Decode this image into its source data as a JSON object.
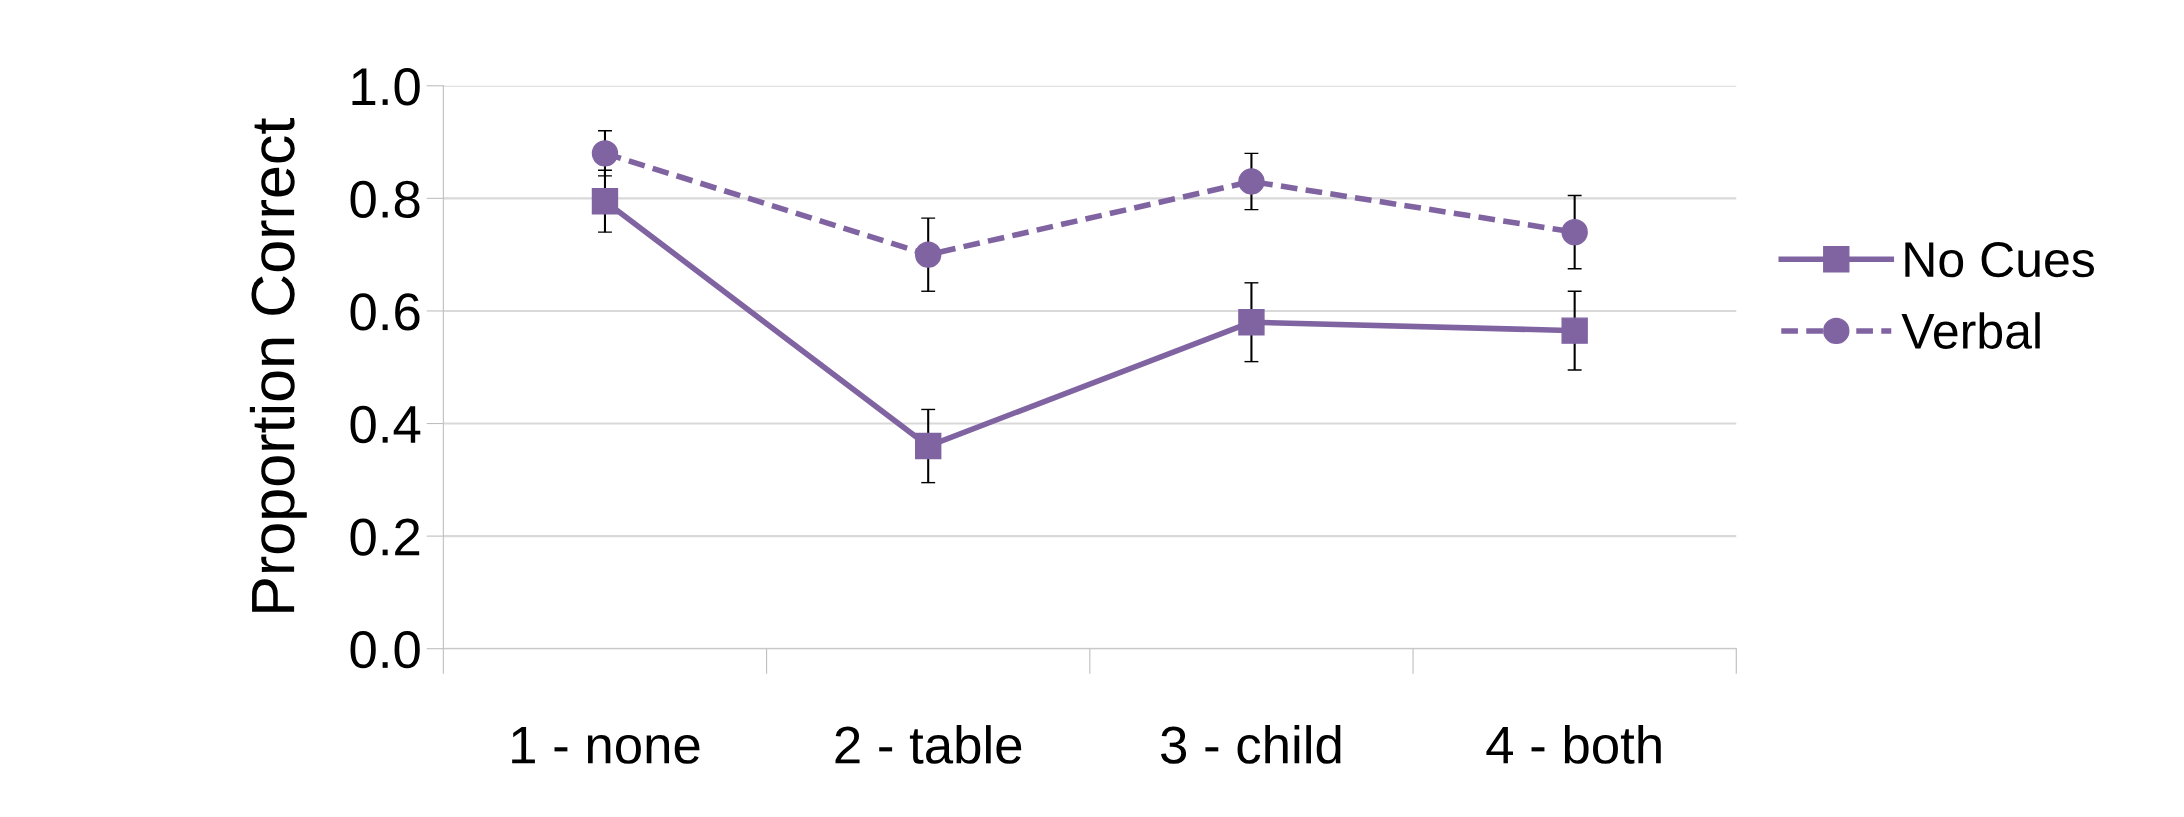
{
  "chart_data": {
    "type": "line",
    "ylabel": "Proportion Correct",
    "categories": [
      "1 - none",
      "2 - table",
      "3 - child",
      "4 - both"
    ],
    "series": [
      {
        "name": "No Cues",
        "color": "#8064a2",
        "values": [
          0.795,
          0.36,
          0.58,
          0.565
        ],
        "errors": [
          0.055,
          0.065,
          0.07,
          0.07
        ],
        "marker": "square",
        "line_style": "solid"
      },
      {
        "name": "Verbal",
        "color": "#8064a2",
        "values": [
          0.88,
          0.7,
          0.83,
          0.74
        ],
        "errors": [
          0.04,
          0.065,
          0.05,
          0.065
        ],
        "marker": "circle",
        "line_style": "dashed"
      }
    ],
    "ylim": [
      0,
      1
    ],
    "yticks": [
      {
        "value": 0,
        "label": "0.0"
      },
      0.2,
      0.4,
      0.6,
      0.8,
      {
        "value": 1,
        "label": "1.0"
      }
    ],
    "grid": "y",
    "legend": "right"
  }
}
